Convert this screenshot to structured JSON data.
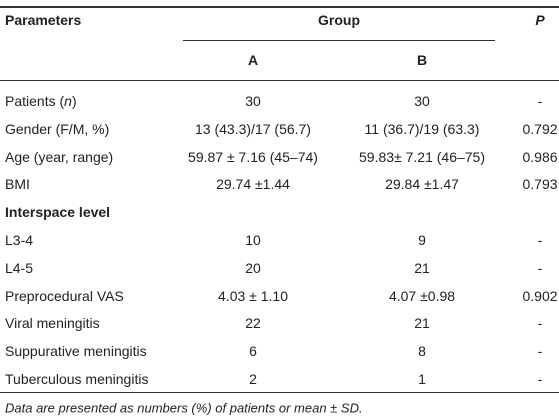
{
  "table": {
    "header": {
      "parameters": "Parameters",
      "group": "Group",
      "p": "P",
      "a": "A",
      "b": "B"
    },
    "rows": [
      {
        "label_parts": [
          {
            "text": "Patients ("
          },
          {
            "text": "n",
            "italic": true
          },
          {
            "text": ")"
          }
        ],
        "cells": [
          "30",
          "30",
          "-"
        ]
      },
      {
        "label": "Gender (F/M, %)",
        "cells": [
          "13 (43.3)/17 (56.7)",
          "11 (36.7)/19 (63.3)",
          "0.792"
        ]
      },
      {
        "label": "Age (year, range)",
        "cells": [
          "59.87 ± 7.16 (45–74)",
          "59.83± 7.21 (46–75)",
          "0.986"
        ]
      },
      {
        "label": "BMI",
        "cells": [
          "29.74 ±1.44",
          "29.84 ±1.47",
          "0.793"
        ]
      },
      {
        "section": "Interspace level"
      },
      {
        "label": "L3-4",
        "cells": [
          "10",
          "9",
          "-"
        ]
      },
      {
        "label": "L4-5",
        "cells": [
          "20",
          "21",
          "-"
        ]
      },
      {
        "label": "Preprocedural VAS",
        "cells": [
          "4.03 ± 1.10",
          "4.07 ±0.98",
          "0.902"
        ]
      },
      {
        "label": "Viral meningitis",
        "cells": [
          "22",
          "21",
          "-"
        ]
      },
      {
        "label": "Suppurative meningitis",
        "cells": [
          "6",
          "8",
          "-"
        ]
      },
      {
        "label": "Tuberculous meningitis",
        "cells": [
          "2",
          "1",
          "-"
        ]
      }
    ],
    "footnote": "Data are presented as numbers (%) of patients or mean ± SD."
  }
}
